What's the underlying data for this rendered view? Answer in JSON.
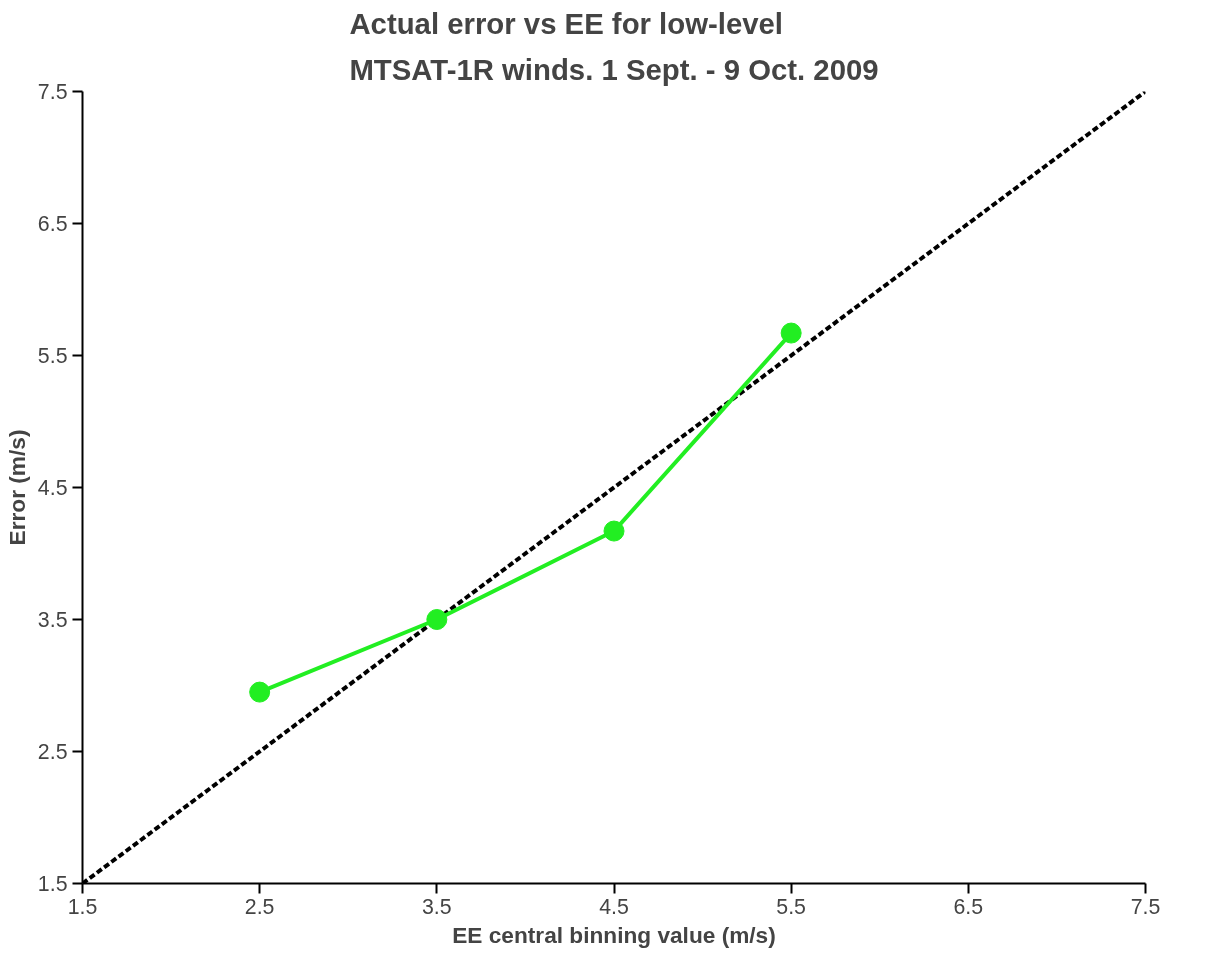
{
  "chart_data": {
    "type": "line",
    "title": "Actual error vs EE for low-level\nMTSAT-1R winds. 1 Sept. - 9 Oct. 2009",
    "xlabel": "EE central binning value (m/s)",
    "ylabel": "Error (m/s)",
    "series": [
      {
        "color": "#000000",
        "line_style": "dashed",
        "marker": "none",
        "x": [
          1.5,
          7.5
        ],
        "values": [
          1.5,
          7.5
        ]
      },
      {
        "color": "#22ee22",
        "line_style": "solid",
        "marker": "circle",
        "x": [
          2.5,
          3.5,
          4.5,
          5.5
        ],
        "values": [
          2.95,
          3.5,
          4.17,
          5.67
        ]
      }
    ],
    "xlim": [
      1.5,
      7.5
    ],
    "ylim": [
      1.5,
      7.5
    ],
    "xticks": [
      1.5,
      2.5,
      3.5,
      4.5,
      5.5,
      6.5,
      7.5
    ],
    "yticks": [
      1.5,
      2.5,
      3.5,
      4.5,
      5.5,
      6.5,
      7.5
    ],
    "grid": false
  }
}
